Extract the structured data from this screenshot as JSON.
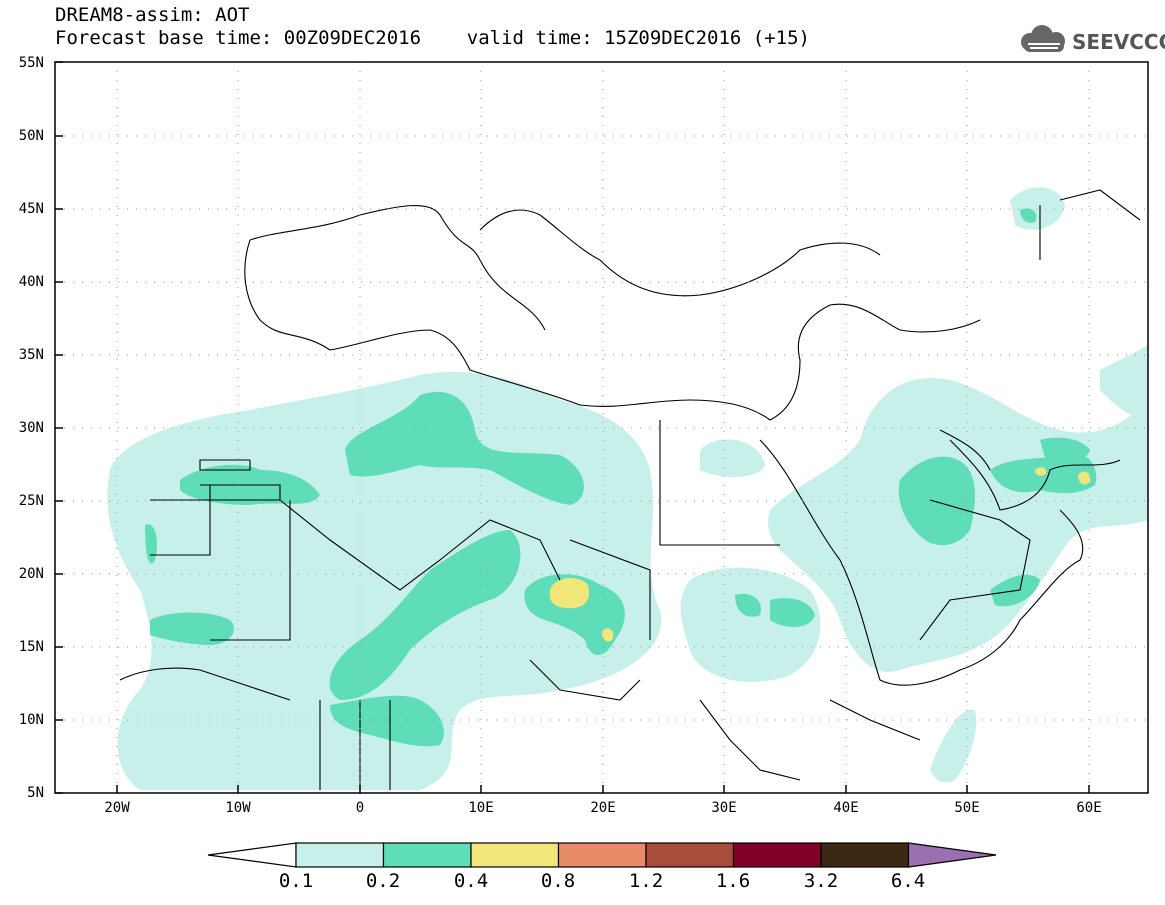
{
  "header": {
    "title_line1": "DREAM8-assim: AOT",
    "title_line2": "Forecast base time: 00Z09DEC2016    valid time: 15Z09DEC2016 (+15)",
    "logo_text": "SEEVCCC"
  },
  "map": {
    "lat_labels": [
      "55N",
      "50N",
      "45N",
      "40N",
      "35N",
      "30N",
      "25N",
      "20N",
      "15N",
      "10N",
      "5N"
    ],
    "lon_labels": [
      "20W",
      "10W",
      "0",
      "10E",
      "20E",
      "30E",
      "40E",
      "50E",
      "60E"
    ],
    "lat_range": [
      5,
      55
    ],
    "lon_range": [
      -25,
      65
    ],
    "grid": "dotted",
    "colors": {
      "c1": "#c8f0ea",
      "c2": "#5fdcb8",
      "c3": "#f0e67a",
      "coast": "#000000"
    }
  },
  "colorbar": {
    "labels": [
      "0.1",
      "0.2",
      "0.4",
      "0.8",
      "1.2",
      "1.6",
      "3.2",
      "6.4"
    ],
    "colors": [
      "#ffffff",
      "#c8f0ea",
      "#5fdcb8",
      "#f0e67a",
      "#e88c68",
      "#a84c3c",
      "#800028",
      "#3c2814",
      "#9a70b0"
    ]
  }
}
